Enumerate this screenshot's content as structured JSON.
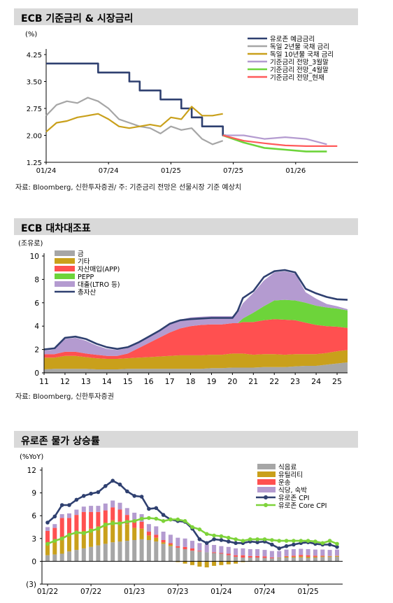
{
  "chart_data": [
    {
      "type": "line",
      "title": "ECB 기준금리 & 시장금리",
      "ylabel": "(%)",
      "ylim": [
        1.25,
        4.25
      ],
      "yticks": [
        "4.25",
        "3.50",
        "2.75",
        "2.00",
        "1.25"
      ],
      "xticks": [
        "01/24",
        "07/24",
        "01/25",
        "07/25",
        "01/26"
      ],
      "grid": false,
      "legend_position": "top-right",
      "note": "자료: Bloomberg, 신한투자증권/ 주: 기준금리 전망은 선물시장 기준 예상치",
      "colors": {
        "deposit": "#2f4070",
        "de2y": "#a6a6a6",
        "de10y": "#c9a01b",
        "m3": "#b49bd0",
        "m4": "#6dd43a",
        "now": "#ff5a5a"
      },
      "series": [
        {
          "name": "유로존 예금금리",
          "x": [
            "2024-01",
            "2024-06",
            "2024-09",
            "2024-10",
            "2024-12",
            "2025-02",
            "2025-03",
            "2025-04",
            "2025-06"
          ],
          "values": [
            4.0,
            3.75,
            3.5,
            3.25,
            3.0,
            2.75,
            2.5,
            2.25,
            2.0
          ]
        },
        {
          "name": "독일 2년물 국채 금리",
          "x": [
            "2024-01",
            "2024-02",
            "2024-03",
            "2024-04",
            "2024-05",
            "2024-06",
            "2024-07",
            "2024-08",
            "2024-09",
            "2024-10",
            "2024-11",
            "2024-12",
            "2025-01",
            "2025-02",
            "2025-03",
            "2025-04",
            "2025-05",
            "2025-06"
          ],
          "values": [
            2.55,
            2.85,
            2.95,
            2.9,
            3.05,
            2.95,
            2.75,
            2.45,
            2.35,
            2.25,
            2.2,
            2.05,
            2.25,
            2.15,
            2.2,
            1.9,
            1.75,
            1.85
          ]
        },
        {
          "name": "독일 10년물 국채 금리",
          "x": [
            "2024-01",
            "2024-02",
            "2024-03",
            "2024-04",
            "2024-05",
            "2024-06",
            "2024-07",
            "2024-08",
            "2024-09",
            "2024-10",
            "2024-11",
            "2024-12",
            "2025-01",
            "2025-02",
            "2025-03",
            "2025-04",
            "2025-05",
            "2025-06"
          ],
          "values": [
            2.1,
            2.35,
            2.4,
            2.5,
            2.55,
            2.6,
            2.45,
            2.25,
            2.2,
            2.25,
            2.3,
            2.25,
            2.5,
            2.45,
            2.8,
            2.55,
            2.55,
            2.6
          ]
        },
        {
          "name": "기준금리 전망_3월말",
          "x": [
            "2025-06",
            "2025-08",
            "2025-10",
            "2025-12",
            "2026-02",
            "2026-04"
          ],
          "values": [
            2.0,
            2.0,
            1.9,
            1.95,
            1.9,
            1.75
          ]
        },
        {
          "name": "기준금리 전망_4월말",
          "x": [
            "2025-06",
            "2025-08",
            "2025-10",
            "2025-12",
            "2026-02",
            "2026-04"
          ],
          "values": [
            2.0,
            1.8,
            1.65,
            1.6,
            1.55,
            1.55
          ]
        },
        {
          "name": "기준금리 전망_현재",
          "x": [
            "2025-06",
            "2025-08",
            "2025-10",
            "2025-12",
            "2026-02",
            "2026-05"
          ],
          "values": [
            2.0,
            1.85,
            1.78,
            1.72,
            1.7,
            1.7
          ]
        }
      ]
    },
    {
      "type": "area",
      "title": "ECB 대차대조표",
      "ylabel": "(조유로)",
      "ylim": [
        0,
        10
      ],
      "yticks": [
        "10",
        "8",
        "6",
        "4",
        "2",
        "0"
      ],
      "xticks": [
        "11",
        "12",
        "13",
        "14",
        "15",
        "16",
        "17",
        "18",
        "19",
        "20",
        "21",
        "22",
        "23",
        "24",
        "25"
      ],
      "grid": false,
      "legend_position": "top-left",
      "note": "자료: Bloomberg, 신한투자증권",
      "colors": {
        "gold": "#a6a6a6",
        "other": "#c9a01b",
        "app": "#ff5050",
        "pepp": "#6dd43a",
        "ltro": "#b49bd0",
        "total": "#2f4070"
      },
      "x": [
        2011.0,
        2011.5,
        2012.0,
        2012.5,
        2013.0,
        2013.5,
        2014.0,
        2014.5,
        2015.0,
        2015.5,
        2016.0,
        2016.5,
        2017.0,
        2017.5,
        2018.0,
        2018.5,
        2019.0,
        2019.5,
        2020.0,
        2020.25,
        2020.5,
        2021.0,
        2021.5,
        2022.0,
        2022.5,
        2023.0,
        2023.5,
        2024.0,
        2024.5,
        2025.0,
        2025.5
      ],
      "series": [
        {
          "name": "금",
          "values": [
            0.3,
            0.35,
            0.35,
            0.35,
            0.35,
            0.3,
            0.3,
            0.3,
            0.35,
            0.35,
            0.35,
            0.35,
            0.35,
            0.35,
            0.35,
            0.35,
            0.4,
            0.4,
            0.45,
            0.45,
            0.45,
            0.45,
            0.5,
            0.5,
            0.5,
            0.55,
            0.6,
            0.6,
            0.7,
            0.8,
            0.9
          ]
        },
        {
          "name": "기타",
          "values": [
            1.0,
            0.95,
            1.1,
            1.1,
            1.0,
            0.95,
            0.9,
            0.9,
            0.9,
            0.95,
            1.0,
            1.05,
            1.1,
            1.15,
            1.15,
            1.15,
            1.15,
            1.15,
            1.2,
            1.2,
            1.2,
            1.1,
            1.1,
            1.1,
            1.05,
            1.05,
            1.0,
            1.0,
            1.0,
            1.05,
            1.05
          ]
        },
        {
          "name": "자산매입(APP)",
          "values": [
            0.3,
            0.3,
            0.35,
            0.35,
            0.3,
            0.3,
            0.25,
            0.25,
            0.4,
            0.8,
            1.2,
            1.6,
            2.0,
            2.3,
            2.5,
            2.6,
            2.6,
            2.6,
            2.6,
            2.6,
            2.7,
            2.8,
            2.9,
            3.0,
            3.0,
            2.9,
            2.7,
            2.5,
            2.3,
            2.1,
            1.9
          ]
        },
        {
          "name": "PEPP",
          "values": [
            0,
            0,
            0,
            0,
            0,
            0,
            0,
            0,
            0,
            0,
            0,
            0,
            0,
            0,
            0,
            0,
            0,
            0,
            0,
            0,
            0.3,
            0.8,
            1.2,
            1.6,
            1.7,
            1.7,
            1.7,
            1.65,
            1.6,
            1.55,
            1.5
          ]
        },
        {
          "name": "대출(LTRO 등)",
          "values": [
            0.3,
            0.4,
            1.1,
            1.2,
            1.1,
            0.8,
            0.6,
            0.5,
            0.45,
            0.5,
            0.55,
            0.6,
            0.75,
            0.75,
            0.75,
            0.7,
            0.7,
            0.7,
            0.6,
            0.9,
            1.3,
            1.7,
            2.2,
            2.4,
            2.45,
            2.3,
            0.9,
            0.6,
            0.3,
            0.2,
            0.1
          ]
        },
        {
          "name": "총자산",
          "values": [
            2.0,
            2.1,
            3.0,
            3.1,
            2.9,
            2.5,
            2.2,
            2.05,
            2.2,
            2.6,
            3.1,
            3.6,
            4.2,
            4.5,
            4.6,
            4.65,
            4.7,
            4.7,
            4.7,
            5.3,
            6.4,
            7.0,
            8.2,
            8.7,
            8.8,
            8.6,
            7.2,
            6.8,
            6.5,
            6.3,
            6.25
          ]
        }
      ]
    },
    {
      "type": "bar",
      "title": "유로존 물가 상승률",
      "ylabel": "(%YoY)",
      "ylim": [
        -3,
        12
      ],
      "yticks": [
        "12",
        "9",
        "6",
        "3",
        "0",
        "(3)"
      ],
      "xticks": [
        "01/22",
        "07/22",
        "01/23",
        "07/23",
        "01/24",
        "07/24",
        "01/25"
      ],
      "grid": false,
      "legend_position": "top-right",
      "colors": {
        "food": "#a6a6a6",
        "util": "#c9a01b",
        "transport": "#ff5050",
        "restaurant": "#b49bd0",
        "cpi": "#2f4070",
        "core": "#7ed33a"
      },
      "x": [
        "2022-01",
        "2022-02",
        "2022-03",
        "2022-04",
        "2022-05",
        "2022-06",
        "2022-07",
        "2022-08",
        "2022-09",
        "2022-10",
        "2022-11",
        "2022-12",
        "2023-01",
        "2023-02",
        "2023-03",
        "2023-04",
        "2023-05",
        "2023-06",
        "2023-07",
        "2023-08",
        "2023-09",
        "2023-10",
        "2023-11",
        "2023-12",
        "2024-01",
        "2024-02",
        "2024-03",
        "2024-04",
        "2024-05",
        "2024-06",
        "2024-07",
        "2024-08",
        "2024-09",
        "2024-10",
        "2024-11",
        "2024-12",
        "2025-01",
        "2025-02",
        "2025-03",
        "2025-04",
        "2025-05"
      ],
      "bar_series": [
        {
          "name": "식음료",
          "values": [
            0.8,
            0.9,
            1.0,
            1.3,
            1.5,
            1.7,
            1.9,
            2.1,
            2.3,
            2.5,
            2.6,
            2.7,
            2.8,
            2.9,
            2.8,
            2.6,
            2.3,
            2.0,
            1.8,
            1.6,
            1.4,
            1.3,
            1.2,
            1.1,
            1.0,
            0.8,
            0.6,
            0.5,
            0.5,
            0.5,
            0.45,
            0.4,
            0.45,
            0.5,
            0.5,
            0.5,
            0.45,
            0.5,
            0.55,
            0.55,
            0.6
          ]
        },
        {
          "name": "유틸리티",
          "values": [
            1.6,
            1.7,
            2.2,
            2.1,
            2.2,
            2.3,
            2.4,
            2.5,
            2.8,
            2.9,
            2.6,
            2.2,
            1.6,
            1.4,
            0.6,
            0.5,
            0.2,
            0.2,
            -0.1,
            -0.3,
            -0.5,
            -0.7,
            -0.8,
            -0.6,
            -0.5,
            -0.4,
            -0.3,
            -0.1,
            -0.05,
            0.0,
            0.0,
            0.0,
            0.05,
            0.1,
            0.1,
            0.15,
            0.15,
            0.1,
            0.1,
            0.1,
            0.1
          ]
        },
        {
          "name": "운송",
          "values": [
            1.6,
            1.8,
            2.5,
            2.3,
            2.4,
            2.5,
            2.2,
            1.9,
            1.6,
            1.7,
            1.6,
            1.2,
            1.0,
            0.9,
            0.5,
            0.4,
            0.3,
            0.2,
            0.2,
            0.3,
            0.3,
            0.1,
            0.0,
            0.1,
            0.1,
            0.2,
            0.2,
            0.3,
            0.2,
            0.2,
            0.2,
            0.1,
            0.0,
            0.1,
            0.15,
            0.2,
            0.2,
            0.15,
            0.1,
            0.05,
            0.05
          ]
        },
        {
          "name": "식당, 숙박",
          "values": [
            0.5,
            0.5,
            0.5,
            0.6,
            0.7,
            0.7,
            0.8,
            0.8,
            0.9,
            0.9,
            0.9,
            0.9,
            1.0,
            1.0,
            1.0,
            1.1,
            1.1,
            1.1,
            1.1,
            1.1,
            1.0,
            1.0,
            1.0,
            0.95,
            0.9,
            0.9,
            0.9,
            0.9,
            0.9,
            0.9,
            0.85,
            0.85,
            0.85,
            0.85,
            0.85,
            0.8,
            0.8,
            0.8,
            0.8,
            0.8,
            0.8
          ]
        }
      ],
      "line_series": [
        {
          "name": "유로존 CPI",
          "values": [
            5.1,
            5.9,
            7.4,
            7.4,
            8.1,
            8.6,
            8.9,
            9.1,
            9.9,
            10.6,
            10.1,
            9.2,
            8.6,
            8.5,
            6.9,
            7.0,
            6.1,
            5.5,
            5.3,
            5.2,
            4.3,
            2.9,
            2.4,
            2.9,
            2.8,
            2.6,
            2.4,
            2.4,
            2.6,
            2.5,
            2.6,
            2.2,
            1.7,
            2.0,
            2.2,
            2.4,
            2.5,
            2.3,
            2.2,
            2.2,
            1.9
          ]
        },
        {
          "name": "유로존 Core CPI",
          "values": [
            2.3,
            2.7,
            3.0,
            3.5,
            3.8,
            3.7,
            4.0,
            4.3,
            4.8,
            5.0,
            5.0,
            5.2,
            5.3,
            5.6,
            5.7,
            5.6,
            5.3,
            5.5,
            5.5,
            5.3,
            4.5,
            4.2,
            3.6,
            3.4,
            3.3,
            3.1,
            2.9,
            2.7,
            2.9,
            2.9,
            2.9,
            2.8,
            2.7,
            2.7,
            2.7,
            2.7,
            2.7,
            2.6,
            2.4,
            2.7,
            2.3
          ]
        }
      ]
    }
  ]
}
